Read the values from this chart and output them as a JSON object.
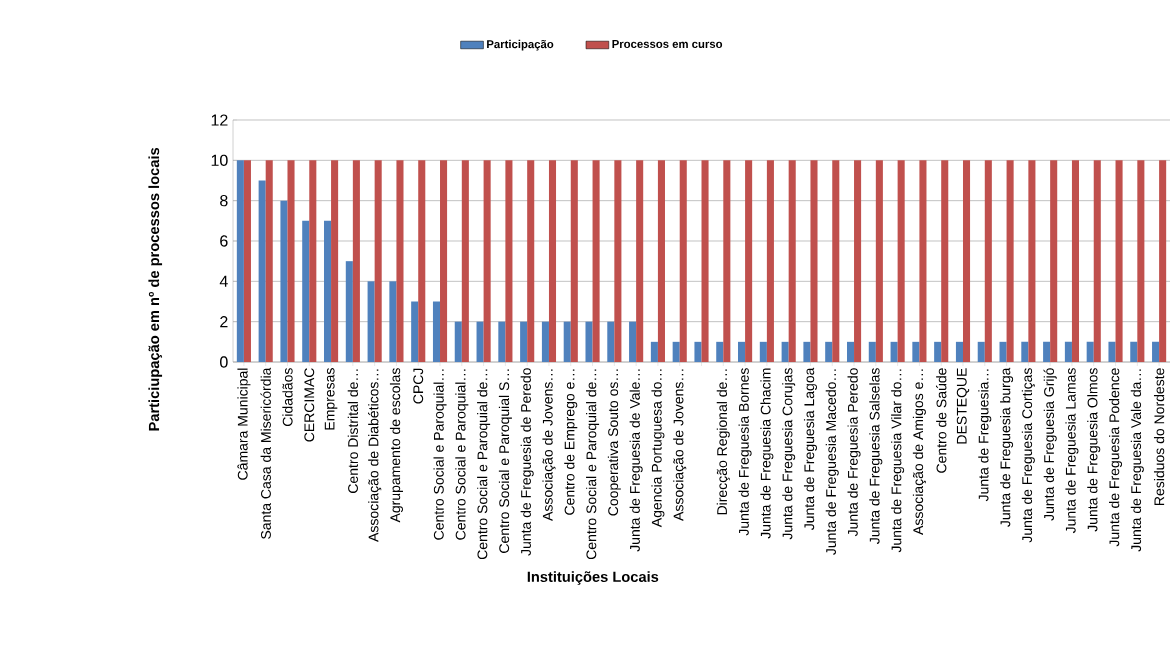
{
  "chart_data": {
    "type": "bar",
    "xlabel": "Instituições Locais",
    "ylabel": "Particiupação em nº de processos locais",
    "categories": [
      "Câmara Municipal",
      "Santa Casa da Misericórdia",
      "Cidadãos",
      "CERCIMAC",
      "Empresas",
      "Centro Distrital de…",
      "Associação de Diabéticos…",
      "Agrupamento de escolas",
      "CPCJ",
      "Centro Social e Paroquial…",
      "Centro  Social e Paroquial…",
      "Centro Social e Paroquial de…",
      "Centro Social e Paroquial S…",
      "Junta de Freguesia de Peredo",
      "Associação de Jovens…",
      "Centro de Emprego e…",
      "Centro Social e Paroquial de…",
      "Cooperativa Souto os…",
      "Junta de Freguesia de Vale…",
      "Agencia Portuguesa do…",
      "Associação de Jovens…",
      null,
      "Direcção Regional de…",
      "Junta de Freguesia Bornes",
      "Junta de Freguesia Chacim",
      "Junta de Freguesia Corujas",
      "Junta de Freguesia Lagoa",
      "Junta de Freguesia Macedo…",
      "Junta de Freguesia Peredo",
      "Junta de Freguesia Salselas",
      "Junta de Freguesia Vilar do…",
      "Associação de Amigos e…",
      "Centro de Saúde",
      "DESTEQUE",
      "Junta de Freguesia…",
      "Junta de Freguesia burga",
      "Junta de Freguesia Cortiças",
      "Junta de Freguesia Grijó",
      "Junta de Freguesia Lamas",
      "Junta de Freguesia Olmos",
      "Junta de Freguesia Podence",
      "Junta de Freguesia Vale da…",
      "Residuos do Nordeste"
    ],
    "series": [
      {
        "name": "Participação",
        "color": "#4f81bd",
        "values": [
          10,
          9,
          8,
          7,
          7,
          5,
          4,
          4,
          3,
          3,
          2,
          2,
          2,
          2,
          2,
          2,
          2,
          2,
          2,
          1,
          1,
          1,
          1,
          1,
          1,
          1,
          1,
          1,
          1,
          1,
          1,
          1,
          1,
          1,
          1,
          1,
          1,
          1,
          1,
          1,
          1,
          1,
          1
        ]
      },
      {
        "name": "Processos em curso",
        "color": "#c0504d",
        "values": [
          10,
          10,
          10,
          10,
          10,
          10,
          10,
          10,
          10,
          10,
          10,
          10,
          10,
          10,
          10,
          10,
          10,
          10,
          10,
          10,
          10,
          10,
          10,
          10,
          10,
          10,
          10,
          10,
          10,
          10,
          10,
          10,
          10,
          10,
          10,
          10,
          10,
          10,
          10,
          10,
          10,
          10,
          10
        ]
      }
    ],
    "ylim": [
      0,
      12
    ],
    "yticks": [
      0,
      2,
      4,
      6,
      8,
      10,
      12
    ],
    "grid": "y",
    "legend": "top"
  }
}
